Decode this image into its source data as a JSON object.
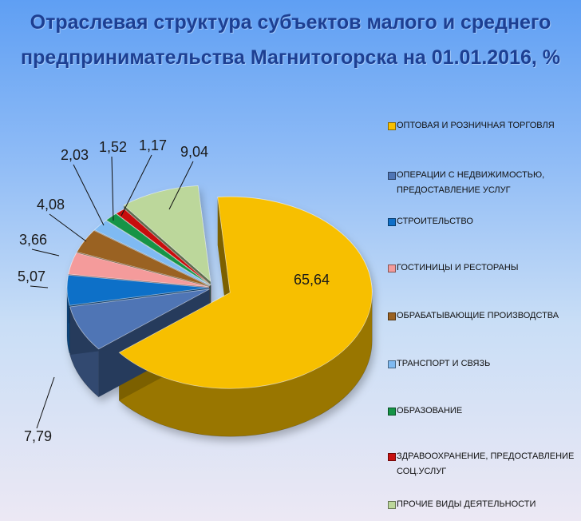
{
  "chart_data": {
    "type": "pie",
    "title_lines": [
      "Отраслевая структура субъектов малого и среднего",
      "предпринимательства Магнитогорска на 01.01.2016, %"
    ],
    "slices": [
      {
        "label": "ОПТОВАЯ И РОЗНИЧНАЯ ТОРГОВЛЯ",
        "value": 65.64,
        "value_label": "65,64",
        "color": "#f7bf00"
      },
      {
        "label": "ОПЕРАЦИИ С НЕДВИЖИМОСТЬЮ, ПРЕДОСТАВЛЕНИЕ УСЛУГ",
        "value": 7.79,
        "value_label": "7,79",
        "color": "#4f75b5"
      },
      {
        "label": "СТРОИТЕЛЬСТВО",
        "value": 5.07,
        "value_label": "5,07",
        "color": "#0f6fc8"
      },
      {
        "label": "ГОСТИНИЦЫ И РЕСТОРАНЫ",
        "value": 3.66,
        "value_label": "3,66",
        "color": "#f49b9b"
      },
      {
        "label": "ОБРАБАТЫВАЮЩИЕ ПРОИЗВОДСТВА",
        "value": 4.08,
        "value_label": "4,08",
        "color": "#9a6222"
      },
      {
        "label": "ТРАНСПОРТ И СВЯЗЬ",
        "value": 2.03,
        "value_label": "2,03",
        "color": "#7fbaf2"
      },
      {
        "label": "ОБРАЗОВАНИЕ",
        "value": 1.52,
        "value_label": "1,52",
        "color": "#159446"
      },
      {
        "label": "ЗДРАВООХРАНЕНИЕ, ПРЕДОСТАВЛЕНИЕ СОЦ.УСЛУГ",
        "value": 1.17,
        "value_label": "1,17",
        "color": "#c81010"
      },
      {
        "label": "ПРОЧИЕ ВИДЫ ДЕЯТЕЛЬНОСТИ",
        "value": 9.04,
        "value_label": "9,04",
        "color": "#bcd79b"
      }
    ],
    "legend_position": "right",
    "style": "3d-exploded-pie"
  }
}
